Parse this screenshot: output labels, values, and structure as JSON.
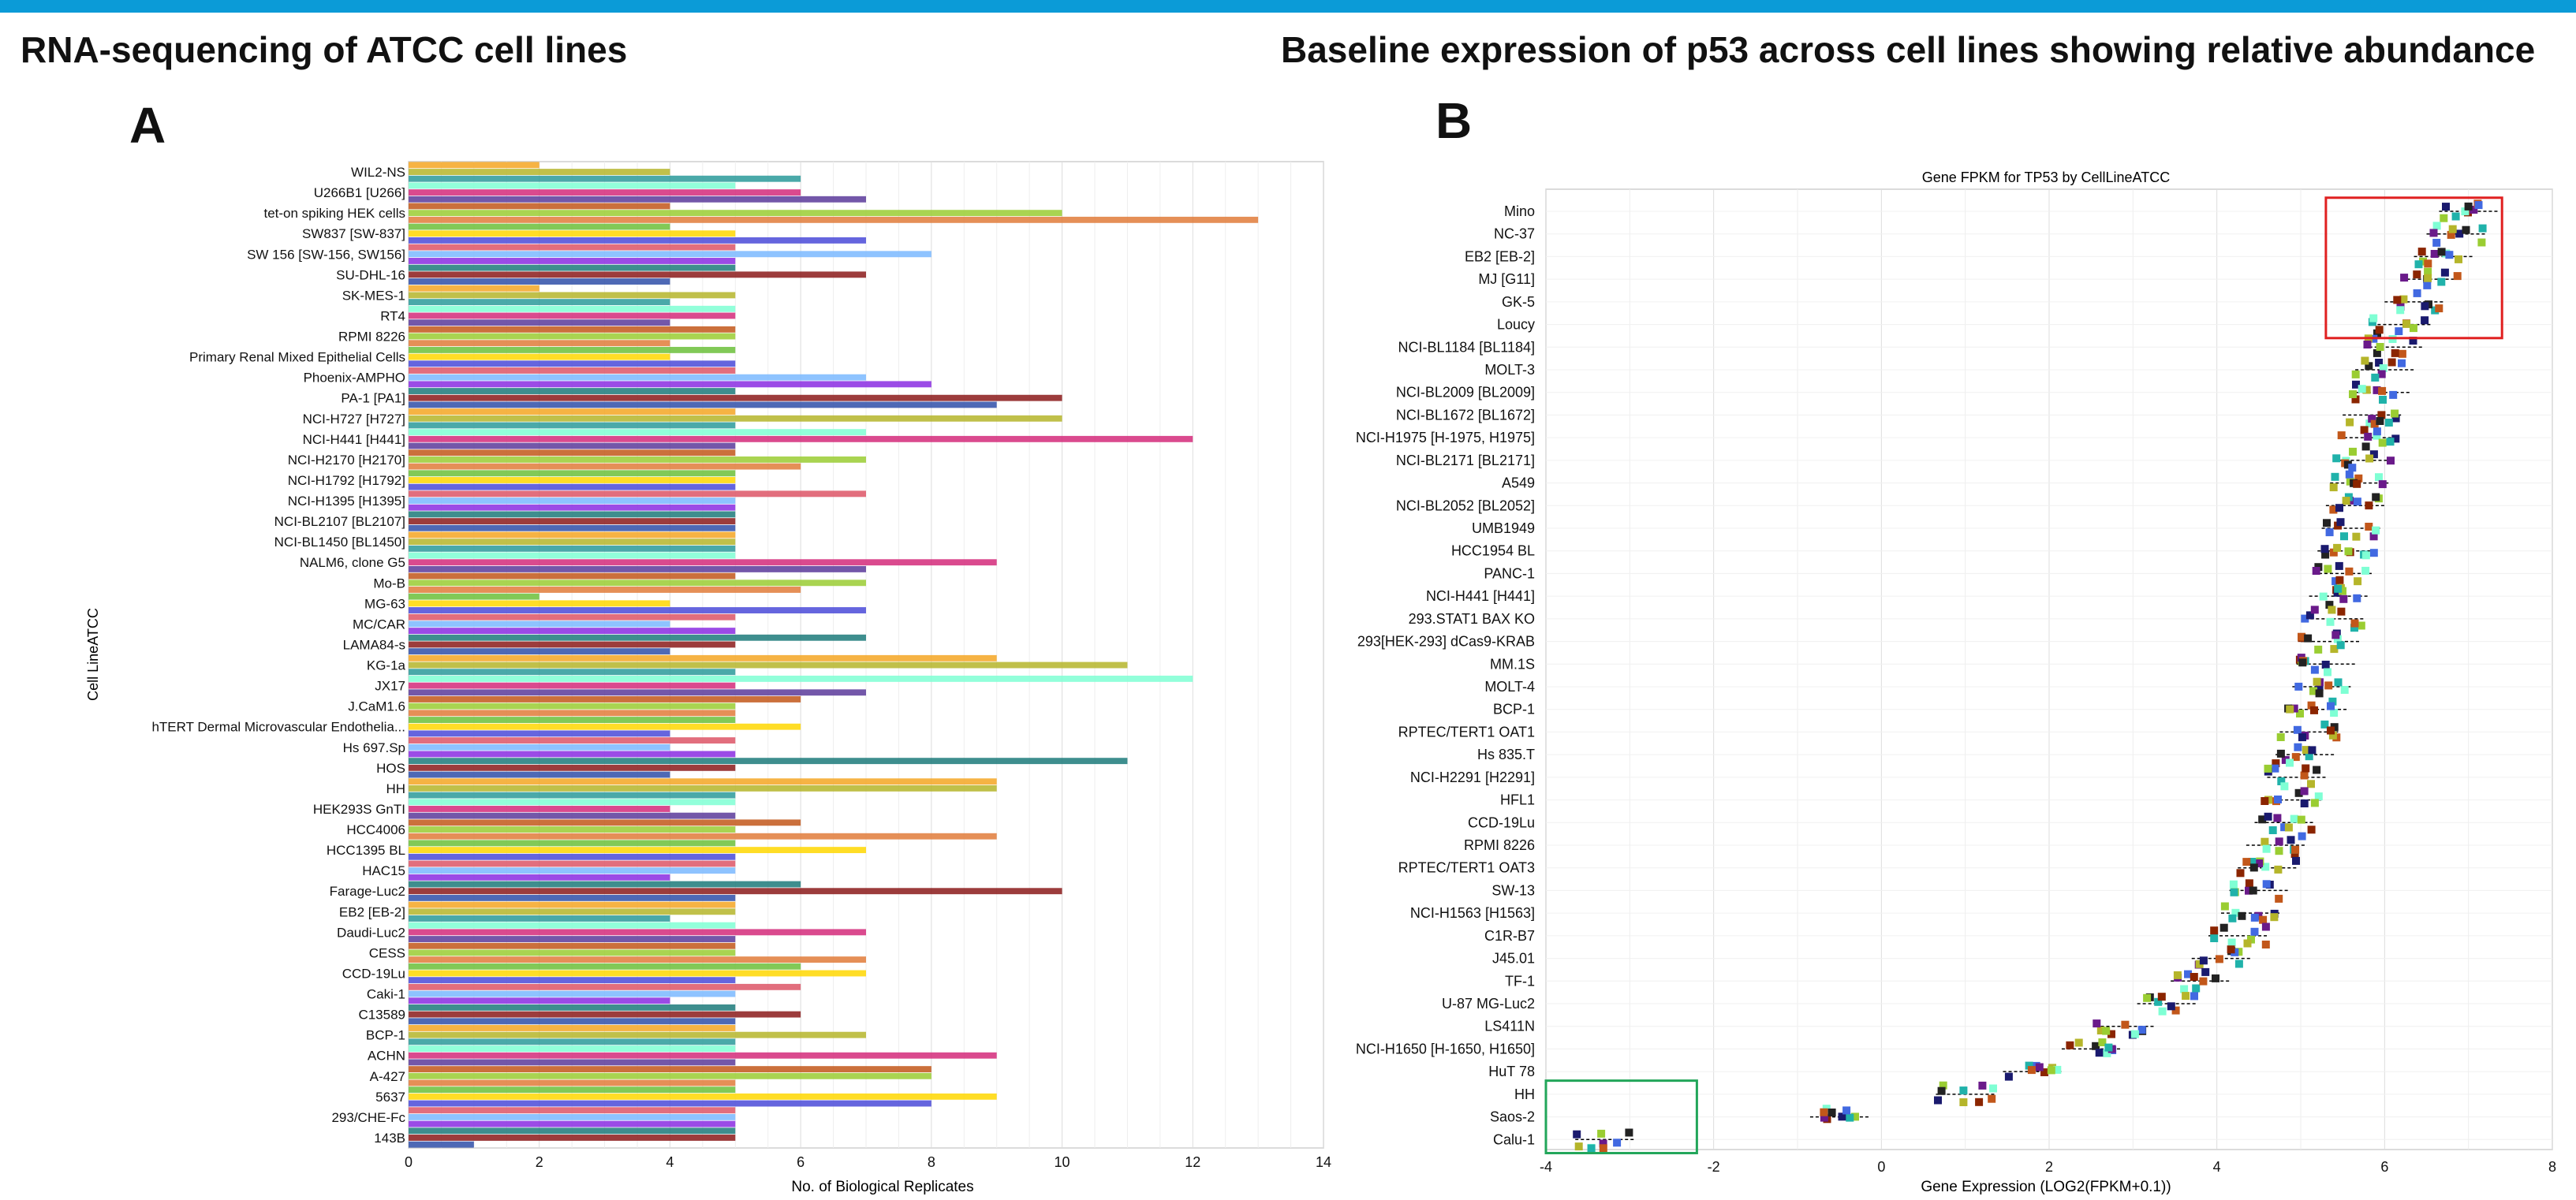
{
  "colors": {
    "top_bar": "#0b9bd7",
    "highlight_top": "#e02020",
    "highlight_bottom": "#22a65a"
  },
  "panelA": {
    "title": "RNA-sequencing of ATCC cell lines",
    "letter": "A",
    "chart_data": {
      "type": "bar",
      "orientation": "horizontal",
      "xlabel": "No. of Biological Replicates",
      "ylabel": "Cell LineATCC",
      "xlim": [
        0,
        14
      ],
      "xticks": [
        "0",
        "2",
        "4",
        "6",
        "8",
        "10",
        "12",
        "14"
      ],
      "grid": true,
      "categories": [
        "WIL2-NS",
        "U266B1 [U266]",
        "tet-on spiking HEK cells",
        "SW837 [SW-837]",
        "SW 156 [SW-156, SW156]",
        "SU-DHL-16",
        "SK-MES-1",
        "RT4",
        "RPMI 8226",
        "Primary Renal Mixed Epithelial Cells",
        "Phoenix-AMPHO",
        "PA-1 [PA1]",
        "NCI-H727 [H727]",
        "NCI-H441 [H441]",
        "NCI-H2170 [H2170]",
        "NCI-H1792 [H1792]",
        "NCI-H1395 [H1395]",
        "NCI-BL2107 [BL2107]",
        "NCI-BL1450 [BL1450]",
        "NALM6, clone G5",
        "Mo-B",
        "MG-63",
        "MC/CAR",
        "LAMA84-s",
        "KG-1a",
        "JX17",
        "J.CaM1.6",
        "hTERT Dermal Microvascular Endothelia...",
        "Hs 697.Sp",
        "HOS",
        "HH",
        "HEK293S GnTI",
        "HCC4006",
        "HCC1395 BL",
        "HAC15",
        "Farage-Luc2",
        "EB2 [EB-2]",
        "Daudi-Luc2",
        "CESS",
        "CCD-19Lu",
        "Caki-1",
        "C13589",
        "BCP-1",
        "ACHN",
        "A-427",
        "5637",
        "293/CHE-Fc",
        "143B"
      ],
      "values": [
        [
          2,
          4,
          6
        ],
        [
          5,
          6,
          7
        ],
        [
          4,
          10,
          13
        ],
        [
          4,
          5,
          7
        ],
        [
          5,
          8,
          5
        ],
        [
          5,
          7,
          4
        ],
        [
          2,
          5,
          4
        ],
        [
          5,
          5,
          4
        ],
        [
          5,
          5,
          4
        ],
        [
          5,
          4,
          5
        ],
        [
          5,
          7,
          8
        ],
        [
          5,
          10,
          9
        ],
        [
          5,
          10,
          5
        ],
        [
          7,
          12,
          5
        ],
        [
          5,
          7,
          6
        ],
        [
          5,
          5,
          5
        ],
        [
          7,
          5,
          5
        ],
        [
          5,
          5,
          5
        ],
        [
          5,
          5,
          5
        ],
        [
          5,
          9,
          7
        ],
        [
          5,
          7,
          6
        ],
        [
          2,
          4,
          7
        ],
        [
          5,
          4,
          5
        ],
        [
          7,
          5,
          4
        ],
        [
          9,
          11,
          5
        ],
        [
          12,
          5,
          7
        ],
        [
          6,
          5,
          5
        ],
        [
          5,
          6,
          4
        ],
        [
          5,
          4,
          5
        ],
        [
          11,
          5,
          4
        ],
        [
          9,
          9,
          5
        ],
        [
          5,
          4,
          5
        ],
        [
          6,
          5,
          9
        ],
        [
          5,
          7,
          5
        ],
        [
          5,
          5,
          4
        ],
        [
          6,
          10,
          5
        ],
        [
          5,
          5,
          4
        ],
        [
          5,
          7,
          5
        ],
        [
          5,
          5,
          7
        ],
        [
          6,
          7,
          5
        ],
        [
          6,
          5,
          4
        ],
        [
          5,
          6,
          5
        ],
        [
          5,
          7,
          5
        ],
        [
          5,
          9,
          5
        ],
        [
          8,
          8,
          5
        ],
        [
          5,
          9,
          8
        ],
        [
          5,
          5,
          5
        ],
        [
          5,
          5,
          1
        ]
      ]
    }
  },
  "panelB": {
    "title": "Baseline expression of p53 across cell lines showing relative abundance",
    "letter": "B",
    "chart_data": {
      "type": "scatter",
      "title": "Gene FPKM for TP53 by CellLineATCC",
      "xlabel": "Gene Expression (LOG2(FPKM+0.1))",
      "xlim": [
        -4,
        8
      ],
      "xticks": [
        "-4",
        "-2",
        "0",
        "2",
        "4",
        "6",
        "8"
      ],
      "grid": true,
      "labels": [
        "Mino",
        "NC-37",
        "EB2 [EB-2]",
        "MJ [G11]",
        "GK-5",
        "Loucy",
        "NCI-BL1184 [BL1184]",
        "MOLT-3",
        "NCI-BL2009 [BL2009]",
        "NCI-BL1672 [BL1672]",
        "NCI-H1975 [H-1975, H1975]",
        "NCI-BL2171 [BL2171]",
        "A549",
        "NCI-BL2052 [BL2052]",
        "UMB1949",
        "HCC1954 BL",
        "PANC-1",
        "NCI-H441 [H441]",
        "293.STAT1 BAX KO",
        "293[HEK-293] dCas9-KRAB",
        "MM.1S",
        "MOLT-4",
        "BCP-1",
        "RPTEC/TERT1 OAT1",
        "Hs 835.T",
        "NCI-H2291 [H2291]",
        "HFL1",
        "CCD-19Lu",
        "RPMI 8226",
        "RPTEC/TERT1 OAT3",
        "SW-13",
        "NCI-H1563 [H1563]",
        "C1R-B7",
        "J45.01",
        "TF-1",
        "U-87 MG-Luc2",
        "LS411N",
        "NCI-H1650 [H-1650, H1650]",
        "HuT 78",
        "HH",
        "Saos-2",
        "Calu-1"
      ],
      "x": [
        7.0,
        6.85,
        6.7,
        6.55,
        6.35,
        6.2,
        6.1,
        6.0,
        5.95,
        5.85,
        5.8,
        5.75,
        5.7,
        5.65,
        5.6,
        5.55,
        5.5,
        5.45,
        5.4,
        5.35,
        5.3,
        5.25,
        5.2,
        5.1,
        5.05,
        4.95,
        4.9,
        4.8,
        4.7,
        4.6,
        4.5,
        4.4,
        4.25,
        4.05,
        3.8,
        3.4,
        2.9,
        2.5,
        1.8,
        1.0,
        -0.5,
        -3.3
      ],
      "highlights": [
        {
          "label": "top",
          "x_range": [
            5.3,
            7.4
          ],
          "rows": [
            0,
            5
          ]
        },
        {
          "label": "bottom",
          "x_range": [
            -4,
            -2.2
          ],
          "rows": [
            39,
            41
          ]
        }
      ]
    }
  }
}
